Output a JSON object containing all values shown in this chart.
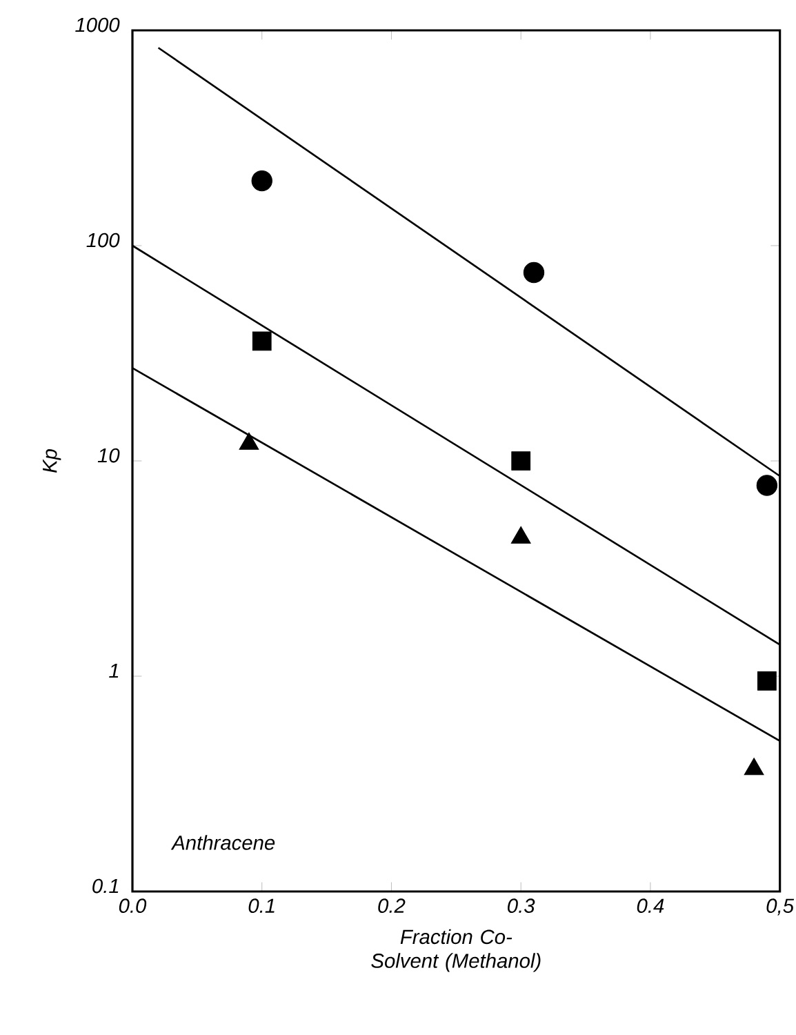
{
  "chart_data": {
    "type": "scatter",
    "xlabel": "Fraction Co-Solvent (Methanol)",
    "ylabel": "Kp",
    "log": "y",
    "grid": false,
    "xlim": [
      0.0,
      0.5
    ],
    "ylim": [
      0.1,
      1000
    ],
    "xticks": [
      {
        "value": 0.0,
        "label": "0.0"
      },
      {
        "value": 0.1,
        "label": "0.1"
      },
      {
        "value": 0.2,
        "label": "0.2"
      },
      {
        "value": 0.3,
        "label": "0.3"
      },
      {
        "value": 0.4,
        "label": "0.4"
      },
      {
        "value": 0.5,
        "label": "0,5"
      }
    ],
    "yticks": [
      0.1,
      1,
      10,
      100,
      1000
    ],
    "annotations": [
      "Anthracene"
    ],
    "series": [
      {
        "marker": "circle",
        "color": "#000000",
        "x": [
          0.1,
          0.31,
          0.49
        ],
        "values": [
          200,
          75,
          7.7
        ]
      },
      {
        "marker": "square",
        "color": "#000000",
        "x": [
          0.1,
          0.3,
          0.49
        ],
        "values": [
          36,
          10,
          0.95
        ]
      },
      {
        "marker": "triangle",
        "color": "#000000",
        "x": [
          0.09,
          0.3,
          0.48
        ],
        "values": [
          12,
          4.4,
          0.37
        ]
      },
      {
        "type": "line",
        "marker": "none",
        "line_style": "solid",
        "color": "#000000",
        "x": [
          0.02,
          0.5
        ],
        "values": [
          830,
          8.5
        ]
      },
      {
        "type": "line",
        "marker": "none",
        "line_style": "solid",
        "color": "#000000",
        "x": [
          0.0,
          0.5
        ],
        "values": [
          100,
          1.4
        ]
      },
      {
        "type": "line",
        "marker": "none",
        "line_style": "solid",
        "color": "#000000",
        "x": [
          0.0,
          0.5
        ],
        "values": [
          27,
          0.5
        ]
      }
    ]
  }
}
